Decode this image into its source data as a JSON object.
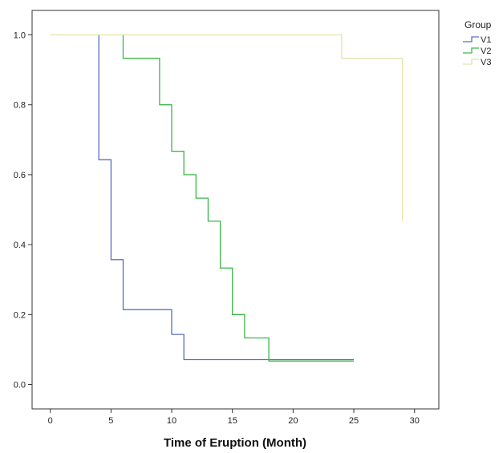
{
  "chart_data": {
    "type": "line",
    "subtype": "kaplan-meier-step",
    "title": "",
    "xlabel": "Time of Eruption (Month)",
    "ylabel": "",
    "xlim": [
      -1.5,
      32
    ],
    "ylim": [
      -0.07,
      1.07
    ],
    "xticks": [
      0,
      5,
      10,
      15,
      20,
      25,
      30
    ],
    "yticks": [
      0.0,
      0.2,
      0.4,
      0.6,
      0.8,
      1.0
    ],
    "xtick_labels": [
      "0",
      "5",
      "10",
      "15",
      "20",
      "25",
      "30"
    ],
    "ytick_labels": [
      "0.0",
      "0.2",
      "0.4",
      "0.6",
      "0.8",
      "1.0"
    ],
    "grid": false,
    "legend": {
      "title": "Group",
      "position": "top-right outside plot"
    },
    "series": [
      {
        "name": "V1",
        "color": "#5b6fc2",
        "points": [
          [
            4,
            1.0
          ],
          [
            4,
            0.643
          ],
          [
            5,
            0.643
          ],
          [
            5,
            0.357
          ],
          [
            6,
            0.357
          ],
          [
            6,
            0.214
          ],
          [
            10,
            0.214
          ],
          [
            10,
            0.143
          ],
          [
            11,
            0.143
          ],
          [
            11,
            0.071
          ],
          [
            25,
            0.071
          ]
        ]
      },
      {
        "name": "V2",
        "color": "#3db84a",
        "points": [
          [
            6,
            1.0
          ],
          [
            6,
            0.933
          ],
          [
            9,
            0.933
          ],
          [
            9,
            0.8
          ],
          [
            10,
            0.8
          ],
          [
            10,
            0.667
          ],
          [
            11,
            0.667
          ],
          [
            11,
            0.6
          ],
          [
            12,
            0.6
          ],
          [
            12,
            0.533
          ],
          [
            13,
            0.533
          ],
          [
            13,
            0.467
          ],
          [
            14,
            0.467
          ],
          [
            14,
            0.333
          ],
          [
            15,
            0.333
          ],
          [
            15,
            0.2
          ],
          [
            16,
            0.2
          ],
          [
            16,
            0.133
          ],
          [
            18,
            0.133
          ],
          [
            18,
            0.067
          ],
          [
            25,
            0.067
          ]
        ]
      },
      {
        "name": "V3",
        "color": "#e3e3aa",
        "points": [
          [
            0,
            1.0
          ],
          [
            24,
            1.0
          ],
          [
            24,
            0.933
          ],
          [
            29,
            0.933
          ],
          [
            29,
            0.467
          ]
        ]
      }
    ]
  }
}
